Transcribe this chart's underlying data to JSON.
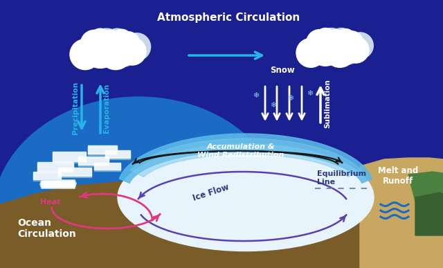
{
  "bg_color": "#1a2090",
  "ocean_color": "#1a6bc4",
  "ocean_dark": "#1550a0",
  "ground_color": "#7a5c28",
  "ice_color": "#e8f4fc",
  "glacier_blue": "#5ab8e8",
  "glacier_blue2": "#78c8ee",
  "glacier_light": "#b8dff0",
  "melt_tan": "#c8a860",
  "melt_tan2": "#b09050",
  "green_color": "#4a8040",
  "green_color2": "#386030",
  "title": "Atmospheric Circulation",
  "labels": {
    "precipitation": "Precipitation",
    "evaporation": "Evaporation",
    "snow": "Snow",
    "sublimation": "Sublimation",
    "accumulation": "Accumulation &\nWind Redistribution",
    "ice_flow": "Ice Flow",
    "equilibrium": "Equilibrium\nLine",
    "melt": "Melt and\nRunoff",
    "heat": "Heat",
    "ocean": "Ocean\nCirculation"
  },
  "arrow_blue": "#28b4e8",
  "arrow_white": "#ffffff",
  "arrow_purple": "#5840b0",
  "arrow_pink": "#e03880",
  "arrow_dark": "#181818",
  "snow_color": "#90c8e8",
  "text_white": "#ffffff",
  "cloud_white": "#ffffff",
  "cloud_gray": "#c8d8e8"
}
